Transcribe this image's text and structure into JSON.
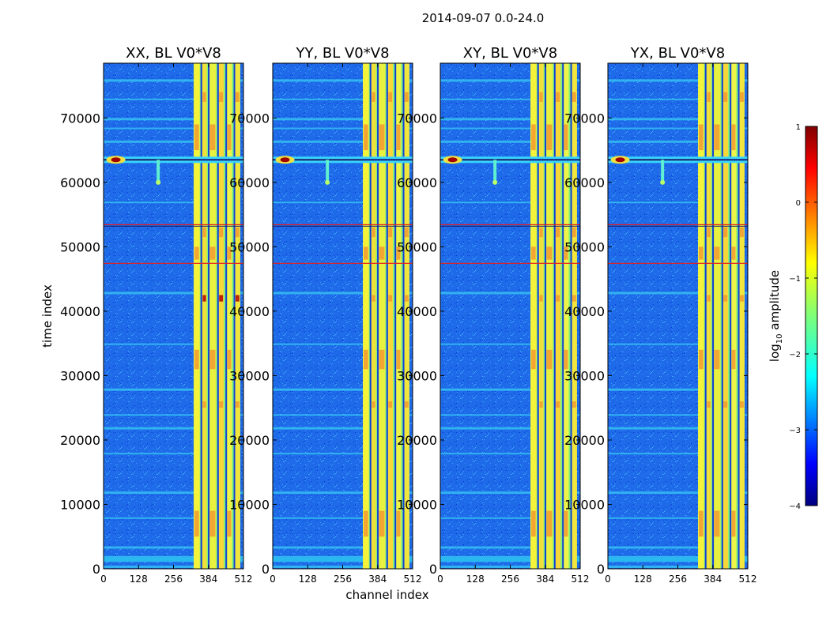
{
  "figure": {
    "suptitle": "2014-09-07 0.0-24.0"
  },
  "chart_data": {
    "type": "heatmap",
    "title": "2014-09-07 0.0-24.0",
    "xlabel": "channel index",
    "ylabel": "time index",
    "xlim": [
      0,
      512
    ],
    "ylim": [
      0,
      78500
    ],
    "x_ticks": [
      "0",
      "128",
      "256",
      "384",
      "512"
    ],
    "y_ticks": [
      "0",
      "10000",
      "20000",
      "30000",
      "40000",
      "50000",
      "60000",
      "70000"
    ],
    "colormap": "jet",
    "colorbar": {
      "label_prefix": "log",
      "label_sub": "10",
      "label_suffix": " amplitude",
      "range": [
        -4,
        1
      ],
      "ticks": [
        "1",
        "0",
        "−1",
        "−2",
        "−3",
        "−4"
      ]
    },
    "panels": [
      {
        "title": "XX, BL V0*V8",
        "polarization": "XX",
        "baseline": "V0*V8"
      },
      {
        "title": "YY, BL V0*V8",
        "polarization": "YY",
        "baseline": "V0*V8"
      },
      {
        "title": "XY, BL V0*V8",
        "polarization": "XY",
        "baseline": "V0*V8"
      },
      {
        "title": "YX, BL V0*V8",
        "polarization": "YX",
        "baseline": "V0*V8"
      }
    ],
    "features": {
      "rfi_band_channels": [
        330,
        512
      ],
      "strong_event_time": 63500,
      "red_line_times": [
        53500,
        47500
      ]
    }
  }
}
